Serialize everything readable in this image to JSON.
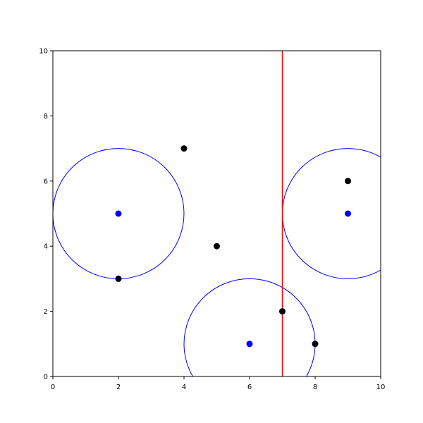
{
  "chart_data": {
    "type": "scatter",
    "title": "",
    "xlabel": "",
    "ylabel": "",
    "xlim": [
      0,
      10
    ],
    "ylim": [
      0,
      10
    ],
    "grid": false,
    "xticks": [
      0,
      2,
      4,
      6,
      8,
      10
    ],
    "yticks": [
      0,
      2,
      4,
      6,
      8,
      10
    ],
    "xtick_labels": [
      "0",
      "2",
      "4",
      "6",
      "8",
      "10"
    ],
    "ytick_labels": [
      "0",
      "2",
      "4",
      "6",
      "8",
      "10"
    ],
    "black_points": [
      {
        "x": 4,
        "y": 7
      },
      {
        "x": 5,
        "y": 4
      },
      {
        "x": 2,
        "y": 3
      },
      {
        "x": 9,
        "y": 6
      },
      {
        "x": 7,
        "y": 2
      },
      {
        "x": 8,
        "y": 1
      }
    ],
    "blue_centers": [
      {
        "x": 2,
        "y": 5
      },
      {
        "x": 9,
        "y": 5
      },
      {
        "x": 6,
        "y": 1
      }
    ],
    "circle_radius": 2,
    "vertical_line_x": 7,
    "colors": {
      "points": "#000000",
      "centers": "#0000ff",
      "circles": "#0000ff",
      "line": "#ff0000"
    }
  }
}
